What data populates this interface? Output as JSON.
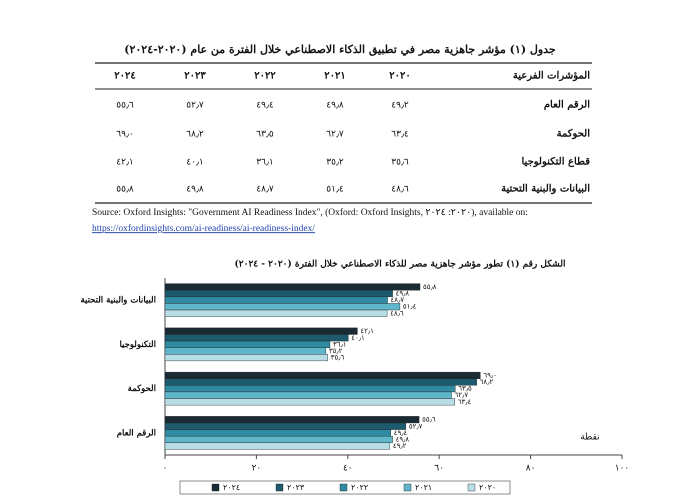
{
  "table": {
    "title": "جدول (١) مؤشر جاهزية مصر في تطبيق الذكاء الاصطناعي خلال الفترة من عام (٢٠٢٠-٢٠٢٤)",
    "header": [
      "المؤشرات الفرعية",
      "٢٠٢٠",
      "٢٠٢١",
      "٢٠٢٢",
      "٢٠٢٣",
      "٢٠٢٤"
    ],
    "rows": [
      [
        "الرقم العام",
        "٤٩٫٢",
        "٤٩٫٨",
        "٤٩٫٤",
        "٥٢٫٧",
        "٥٥٫٦"
      ],
      [
        "الحوكمة",
        "٦٣٫٤",
        "٦٢٫٧",
        "٦٣٫٥",
        "٦٨٫٢",
        "٦٩٫٠"
      ],
      [
        "قطاع التكنولوجيا",
        "٣٥٫٦",
        "٣٥٫٢",
        "٣٦٫١",
        "٤٠٫١",
        "٤٢٫١"
      ],
      [
        "البيانات والبنية التحتية",
        "٤٨٫٦",
        "٥١٫٤",
        "٤٨٫٧",
        "٤٩٫٨",
        "٥٥٫٨"
      ]
    ]
  },
  "source": {
    "text": "Source: Oxford Insights: \"Government AI Readiness Index\", (Oxford: Oxford Insights, ٢٠٢٠: ٢٠٢٤), available on:",
    "link": "https://oxfordinsights.com/ai-readiness/ai-readiness-index/"
  },
  "chart_data": {
    "type": "hbar",
    "title": "الشكل رقم (١) تطور مؤشر جاهزية مصر للذكاء الاصطناعي خلال الفترة (٢٠٢٠ - ٢٠٢٤)",
    "x_label": "نقطة",
    "categories": [
      "البيانات والبنية التحتية",
      "التكنولوجيا",
      "الحوكمة",
      "الرقم العام"
    ],
    "series": [
      {
        "name": "٢٠٢٤",
        "color": "#1b2b33",
        "values": [
          55.8,
          42.1,
          69.0,
          55.6
        ],
        "value_labels": [
          "٥٥٫٨",
          "٤٢٫١",
          "٦٩٫٠",
          "٥٥٫٦"
        ]
      },
      {
        "name": "٢٠٢٣",
        "color": "#1e5a6d",
        "values": [
          49.8,
          40.1,
          68.2,
          52.7
        ],
        "value_labels": [
          "٤٩٫٨",
          "٤٠٫١",
          "٦٨٫٢",
          "٥٢٫٧"
        ]
      },
      {
        "name": "٢٠٢٢",
        "color": "#2e8ba1",
        "values": [
          48.7,
          36.1,
          63.5,
          49.4
        ],
        "value_labels": [
          "٤٨٫٧",
          "٣٦٫١",
          "٦٣٫٥",
          "٤٩٫٤"
        ]
      },
      {
        "name": "٢٠٢١",
        "color": "#5fb6ca",
        "values": [
          51.4,
          35.2,
          62.7,
          49.8
        ],
        "value_labels": [
          "٥١٫٤",
          "٣٥٫٢",
          "٦٢٫٧",
          "٤٩٫٨"
        ]
      },
      {
        "name": "٢٠٢٠",
        "color": "#b7dee7",
        "values": [
          48.6,
          35.6,
          63.4,
          49.2
        ],
        "value_labels": [
          "٤٨٫٦",
          "٣٥٫٦",
          "٦٣٫٤",
          "٤٩٫٢"
        ]
      }
    ],
    "xlim": [
      0,
      100
    ],
    "xticks": [
      {
        "value": 0,
        "label": "٠"
      },
      {
        "value": 20,
        "label": "٢٠"
      },
      {
        "value": 40,
        "label": "٤٠"
      },
      {
        "value": 60,
        "label": "٦٠"
      },
      {
        "value": 80,
        "label": "٨٠"
      },
      {
        "value": 100,
        "label": "١٠٠"
      }
    ],
    "legend": "bottom"
  }
}
